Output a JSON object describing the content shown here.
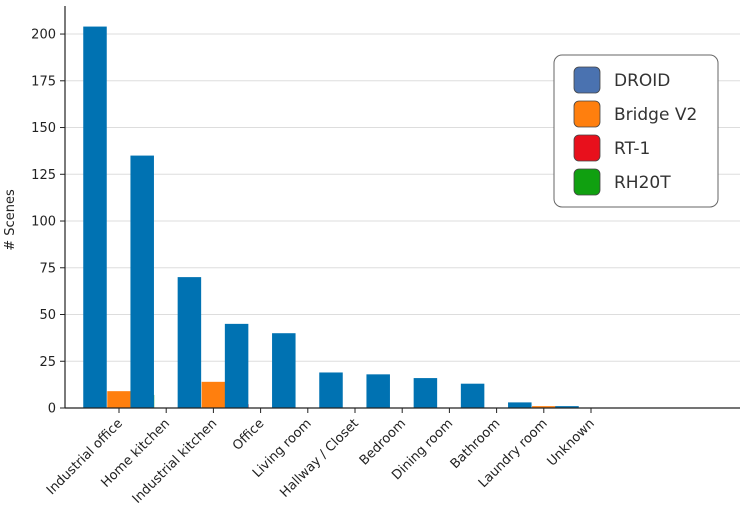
{
  "chart_data": {
    "type": "bar",
    "title": "",
    "xlabel": "",
    "ylabel": "# Scenes",
    "ylim": [
      0,
      215
    ],
    "yticks": [
      0,
      25,
      50,
      75,
      100,
      125,
      150,
      175,
      200
    ],
    "grid": "horizontal",
    "legend_position": "top-right",
    "categories": [
      "Industrial office",
      "Home kitchen",
      "Industrial kitchen",
      "Office",
      "Living room",
      "Hallway / Closet",
      "Bedroom",
      "Dining room",
      "Bathroom",
      "Laundry room",
      "Unknown"
    ],
    "series": [
      {
        "name": "DROID",
        "color": "#0072b2",
        "legend_color": "#4a72b0",
        "values": [
          204,
          135,
          70,
          45,
          40,
          19,
          18,
          16,
          13,
          3,
          1
        ]
      },
      {
        "name": "Bridge V2",
        "color": "#ff7f0e",
        "legend_color": "#ff7f0e",
        "values": [
          9,
          0,
          14,
          0,
          0,
          0,
          0,
          0,
          0,
          1,
          0
        ]
      },
      {
        "name": "RT-1",
        "color": "#d62728",
        "legend_color": "#e8101c",
        "values": [
          0,
          0,
          2,
          0,
          0,
          0,
          0,
          0,
          0,
          0,
          0
        ]
      },
      {
        "name": "RH20T",
        "color": "#2ca02c",
        "legend_color": "#10a010",
        "values": [
          7,
          0,
          0,
          0,
          0,
          0,
          0,
          0,
          0,
          0,
          0
        ]
      }
    ]
  }
}
